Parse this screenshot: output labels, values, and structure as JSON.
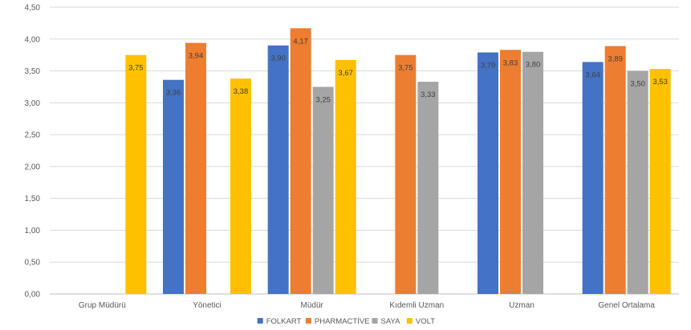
{
  "chart_data": {
    "type": "bar",
    "title": "",
    "xlabel": "",
    "ylabel": "",
    "categories": [
      "Grup Müdürü",
      "Yönetici",
      "Müdür",
      "Kıdemli Uzman",
      "Uzman",
      "Genel Ortalama"
    ],
    "ylim": [
      0,
      4.5
    ],
    "yticks": [
      "0,00",
      "0,50",
      "1,00",
      "1,50",
      "2,00",
      "2,50",
      "3,00",
      "3,50",
      "4,00",
      "4,50"
    ],
    "grid": true,
    "legend_position": "bottom",
    "series": [
      {
        "name": "FOLKART",
        "color": "#4472c4",
        "values": [
          null,
          3.36,
          3.9,
          null,
          3.79,
          3.64
        ],
        "labels": [
          "",
          "3,36",
          "3,90",
          "",
          "3,79",
          "3,64"
        ]
      },
      {
        "name": "PHARMACTİVE",
        "color": "#ed7d31",
        "values": [
          null,
          3.94,
          4.17,
          3.75,
          3.83,
          3.89
        ],
        "labels": [
          "",
          "3,94",
          "4,17",
          "3,75",
          "3,83",
          "3,89"
        ]
      },
      {
        "name": "SAYA",
        "color": "#a5a5a5",
        "values": [
          null,
          null,
          3.25,
          3.33,
          3.8,
          3.5
        ],
        "labels": [
          "",
          "",
          "3,25",
          "3,33",
          "3,80",
          "3,50"
        ]
      },
      {
        "name": "VOLT",
        "color": "#ffc000",
        "values": [
          3.75,
          3.38,
          3.67,
          null,
          null,
          3.53
        ],
        "labels": [
          "3,75",
          "3,38",
          "3,67",
          "",
          "",
          "3,53"
        ]
      }
    ]
  }
}
